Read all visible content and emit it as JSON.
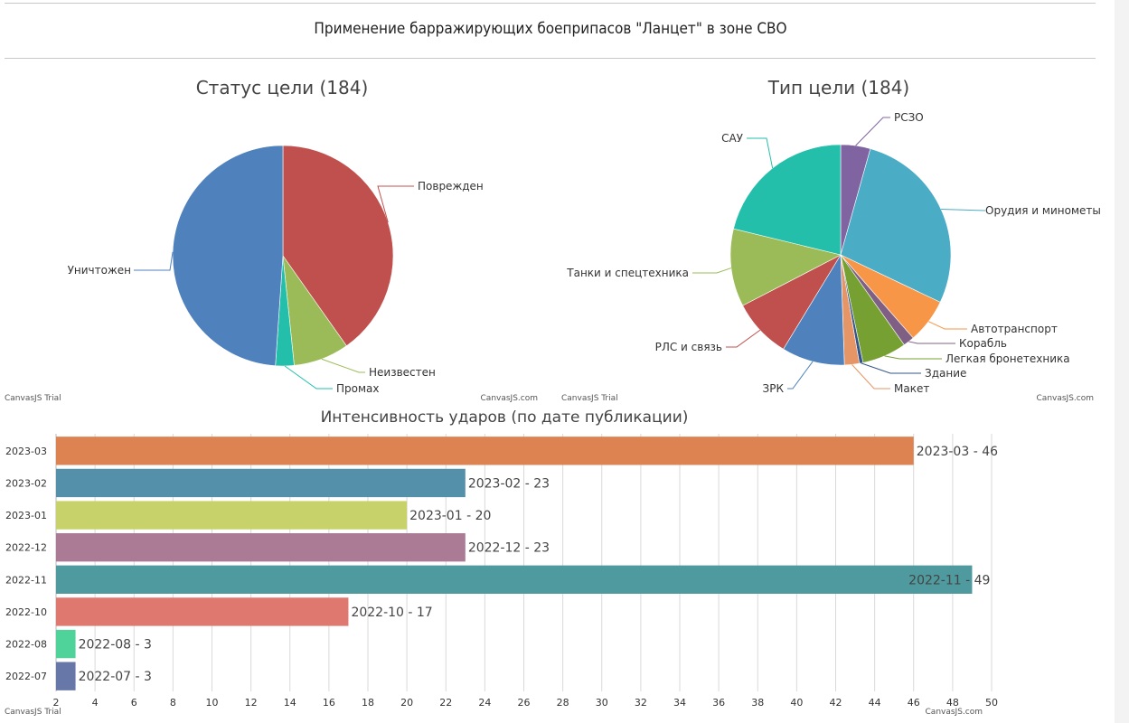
{
  "page": {
    "title": "Применение барражирующих боеприпасов \"Ланцет\" в зоне СВО"
  },
  "credits": {
    "trial": "CanvasJS Trial",
    "site": "CanvasJS.com"
  },
  "chart_data": [
    {
      "type": "pie",
      "title": "Статус цели (184)",
      "categories": [
        "Поврежден",
        "Неизвестен",
        "Промах",
        "Уничтожен"
      ],
      "values": [
        74,
        15,
        5,
        90
      ],
      "colors": [
        "#C0504E",
        "#9BBB58",
        "#23BFAA",
        "#4F81BC"
      ]
    },
    {
      "type": "pie",
      "title": "Тип цели (184)",
      "categories": [
        "РСЗО",
        "Орудия и минометы",
        "Автотранспорт",
        "Корабль",
        "Легкая бронетехника",
        "Здание",
        "Макет",
        "ЗРК",
        "РЛС и связь",
        "Танки и спецтехника",
        "САУ"
      ],
      "values": [
        8,
        51,
        12,
        3,
        12,
        1,
        4,
        17,
        16,
        21,
        39
      ],
      "colors": [
        "#8064A1",
        "#4AACC5",
        "#F79647",
        "#7F6084",
        "#77A033",
        "#33558B",
        "#E59566",
        "#4F81BC",
        "#C0504E",
        "#9BBB58",
        "#23BFAA"
      ]
    },
    {
      "type": "bar",
      "orientation": "horizontal",
      "title": "Интенсивность ударов (по дате публикации)",
      "categories": [
        "2023-03",
        "2023-02",
        "2023-01",
        "2022-12",
        "2022-11",
        "2022-10",
        "2022-08",
        "2022-07"
      ],
      "values": [
        46,
        23,
        20,
        23,
        49,
        17,
        3,
        3
      ],
      "labels": [
        "2023-03 - 46",
        "2023-02 - 23",
        "2023-01 - 20",
        "2022-12 - 23",
        "2022-11 - 49",
        "2022-10 - 17",
        "2022-08 - 3",
        "2022-07 - 3"
      ],
      "colors": [
        "#DD8351",
        "#5590AA",
        "#C8D26A",
        "#AB7A95",
        "#4E9A9E",
        "#DF7970",
        "#4FD39B",
        "#6677A8"
      ],
      "xlim": [
        2,
        50
      ],
      "xticks": [
        2,
        4,
        6,
        8,
        10,
        12,
        14,
        16,
        18,
        20,
        22,
        24,
        26,
        28,
        30,
        32,
        34,
        36,
        38,
        40,
        42,
        44,
        46,
        48,
        50
      ],
      "grid": true
    }
  ]
}
